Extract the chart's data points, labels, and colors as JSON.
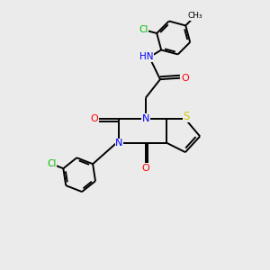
{
  "background_color": "#ebebeb",
  "atom_colors": {
    "C": "#000000",
    "N": "#0000ff",
    "O": "#ff0000",
    "S": "#cccc00",
    "Cl": "#00bb00",
    "H": "#808080"
  },
  "figsize": [
    3.0,
    3.0
  ],
  "dpi": 100,
  "lw": 1.4
}
